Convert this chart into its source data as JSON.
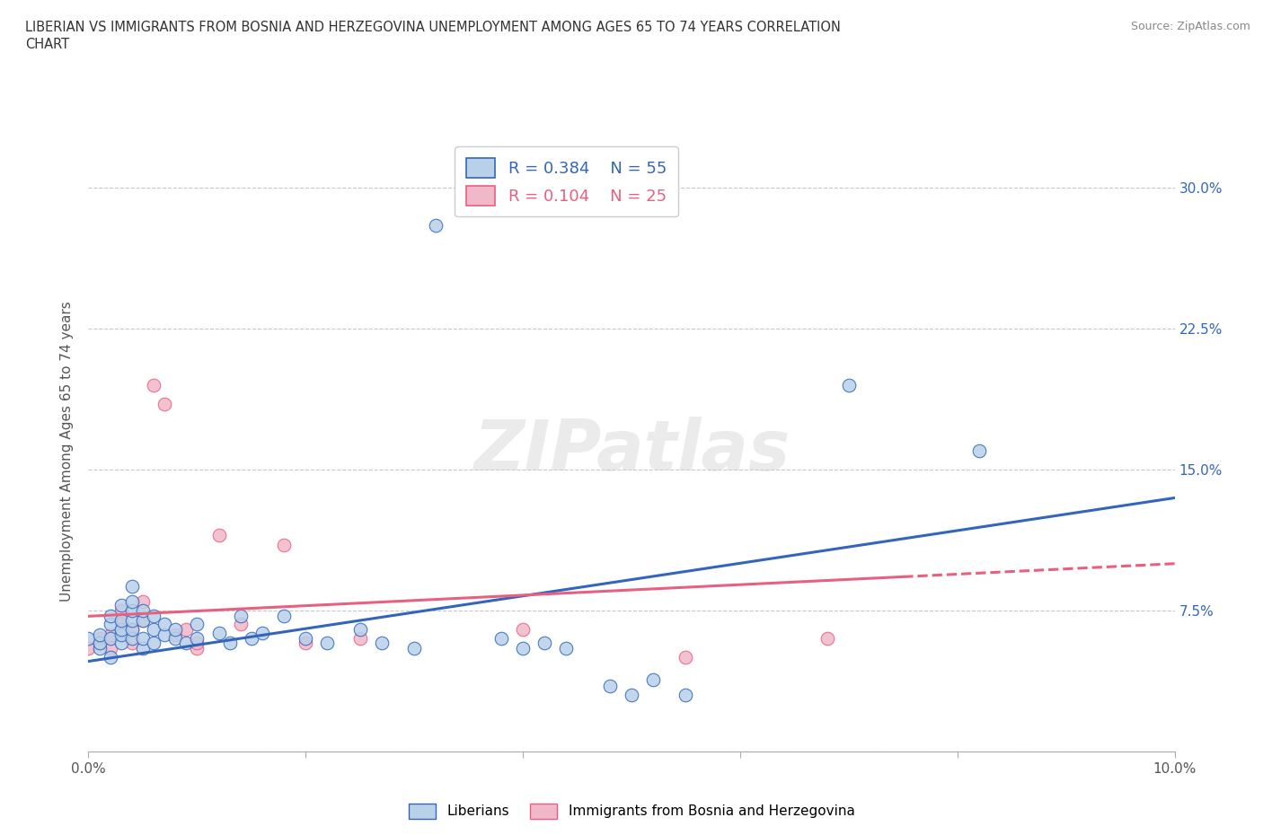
{
  "title_line1": "LIBERIAN VS IMMIGRANTS FROM BOSNIA AND HERZEGOVINA UNEMPLOYMENT AMONG AGES 65 TO 74 YEARS CORRELATION",
  "title_line2": "CHART",
  "source": "Source: ZipAtlas.com",
  "ylabel": "Unemployment Among Ages 65 to 74 years",
  "xlim": [
    0.0,
    0.1
  ],
  "ylim": [
    0.0,
    0.32
  ],
  "xtick_positions": [
    0.0,
    0.02,
    0.04,
    0.06,
    0.08,
    0.1
  ],
  "xtick_labels": [
    "0.0%",
    "",
    "",
    "",
    "",
    "10.0%"
  ],
  "ytick_labels_right": [
    "7.5%",
    "15.0%",
    "22.5%",
    "30.0%"
  ],
  "yticks_right": [
    0.075,
    0.15,
    0.225,
    0.3
  ],
  "grid_color": "#c8c8c8",
  "background_color": "#ffffff",
  "liberian_color": "#b8d0e8",
  "bosnia_color": "#f0b8c8",
  "liberian_line_color": "#3366bb",
  "bosnia_line_color": "#e86080",
  "r_liberian": 0.384,
  "n_liberian": 55,
  "r_bosnia": 0.104,
  "n_bosnia": 25,
  "watermark": "ZIPatlas",
  "legend_labels": [
    "Liberians",
    "Immigrants from Bosnia and Herzegovina"
  ],
  "liberian_scatter": [
    [
      0.0,
      0.06
    ],
    [
      0.001,
      0.055
    ],
    [
      0.001,
      0.058
    ],
    [
      0.001,
      0.062
    ],
    [
      0.002,
      0.06
    ],
    [
      0.002,
      0.068
    ],
    [
      0.002,
      0.072
    ],
    [
      0.002,
      0.05
    ],
    [
      0.003,
      0.058
    ],
    [
      0.003,
      0.062
    ],
    [
      0.003,
      0.065
    ],
    [
      0.003,
      0.07
    ],
    [
      0.003,
      0.078
    ],
    [
      0.004,
      0.06
    ],
    [
      0.004,
      0.065
    ],
    [
      0.004,
      0.07
    ],
    [
      0.004,
      0.075
    ],
    [
      0.004,
      0.08
    ],
    [
      0.004,
      0.088
    ],
    [
      0.005,
      0.055
    ],
    [
      0.005,
      0.06
    ],
    [
      0.005,
      0.07
    ],
    [
      0.005,
      0.075
    ],
    [
      0.006,
      0.058
    ],
    [
      0.006,
      0.065
    ],
    [
      0.006,
      0.072
    ],
    [
      0.007,
      0.062
    ],
    [
      0.007,
      0.068
    ],
    [
      0.008,
      0.06
    ],
    [
      0.008,
      0.065
    ],
    [
      0.009,
      0.058
    ],
    [
      0.01,
      0.06
    ],
    [
      0.01,
      0.068
    ],
    [
      0.012,
      0.063
    ],
    [
      0.013,
      0.058
    ],
    [
      0.014,
      0.072
    ],
    [
      0.015,
      0.06
    ],
    [
      0.016,
      0.063
    ],
    [
      0.018,
      0.072
    ],
    [
      0.02,
      0.06
    ],
    [
      0.022,
      0.058
    ],
    [
      0.025,
      0.065
    ],
    [
      0.027,
      0.058
    ],
    [
      0.03,
      0.055
    ],
    [
      0.032,
      0.28
    ],
    [
      0.038,
      0.06
    ],
    [
      0.04,
      0.055
    ],
    [
      0.042,
      0.058
    ],
    [
      0.044,
      0.055
    ],
    [
      0.048,
      0.035
    ],
    [
      0.05,
      0.03
    ],
    [
      0.052,
      0.038
    ],
    [
      0.055,
      0.03
    ],
    [
      0.07,
      0.195
    ],
    [
      0.082,
      0.16
    ]
  ],
  "bosnia_scatter": [
    [
      0.0,
      0.055
    ],
    [
      0.001,
      0.06
    ],
    [
      0.001,
      0.058
    ],
    [
      0.002,
      0.062
    ],
    [
      0.002,
      0.055
    ],
    [
      0.003,
      0.075
    ],
    [
      0.003,
      0.068
    ],
    [
      0.004,
      0.058
    ],
    [
      0.004,
      0.065
    ],
    [
      0.005,
      0.07
    ],
    [
      0.005,
      0.08
    ],
    [
      0.006,
      0.195
    ],
    [
      0.007,
      0.185
    ],
    [
      0.008,
      0.062
    ],
    [
      0.009,
      0.065
    ],
    [
      0.01,
      0.055
    ],
    [
      0.01,
      0.058
    ],
    [
      0.012,
      0.115
    ],
    [
      0.014,
      0.068
    ],
    [
      0.018,
      0.11
    ],
    [
      0.02,
      0.058
    ],
    [
      0.025,
      0.06
    ],
    [
      0.04,
      0.065
    ],
    [
      0.055,
      0.05
    ],
    [
      0.068,
      0.06
    ]
  ],
  "lib_regression": [
    0.0,
    0.1,
    0.048,
    0.135
  ],
  "bos_regression": [
    0.0,
    0.1,
    0.072,
    0.1
  ]
}
